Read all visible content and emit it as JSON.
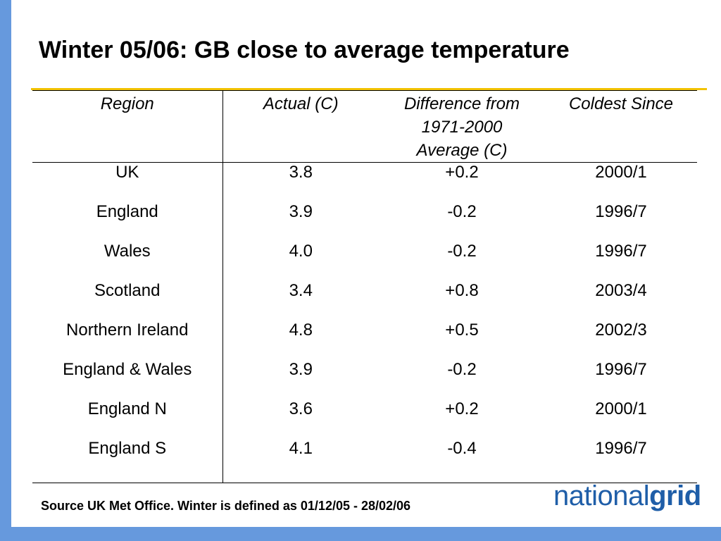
{
  "title": "Winter 05/06: GB close to average temperature",
  "table": {
    "headers": [
      "Region",
      "Actual (C)",
      "Difference from 1971-2000 Average (C)",
      "Coldest Since"
    ],
    "header_lines": {
      "diff_line1": "Difference from",
      "diff_line2": "1971-2000",
      "diff_line3": "Average (C)"
    },
    "rows": [
      [
        "UK",
        "3.8",
        "+0.2",
        "2000/1"
      ],
      [
        "England",
        "3.9",
        "-0.2",
        "1996/7"
      ],
      [
        "Wales",
        "4.0",
        "-0.2",
        "1996/7"
      ],
      [
        "Scotland",
        "3.4",
        "+0.8",
        "2003/4"
      ],
      [
        "Northern Ireland",
        "4.8",
        "+0.5",
        "2002/3"
      ],
      [
        "England & Wales",
        "3.9",
        "-0.2",
        "1996/7"
      ],
      [
        "England N",
        "3.6",
        "+0.2",
        "2000/1"
      ],
      [
        "England S",
        "4.1",
        "-0.4",
        "1996/7"
      ]
    ]
  },
  "footer": {
    "source": "Source UK Met Office. Winter is defined as 01/12/05 - 28/02/06"
  },
  "logo": {
    "part1": "national",
    "part2": "grid"
  },
  "colors": {
    "accent_bar": "#6699dd",
    "rule": "#f2c200",
    "logo": "#1f5ea8"
  }
}
